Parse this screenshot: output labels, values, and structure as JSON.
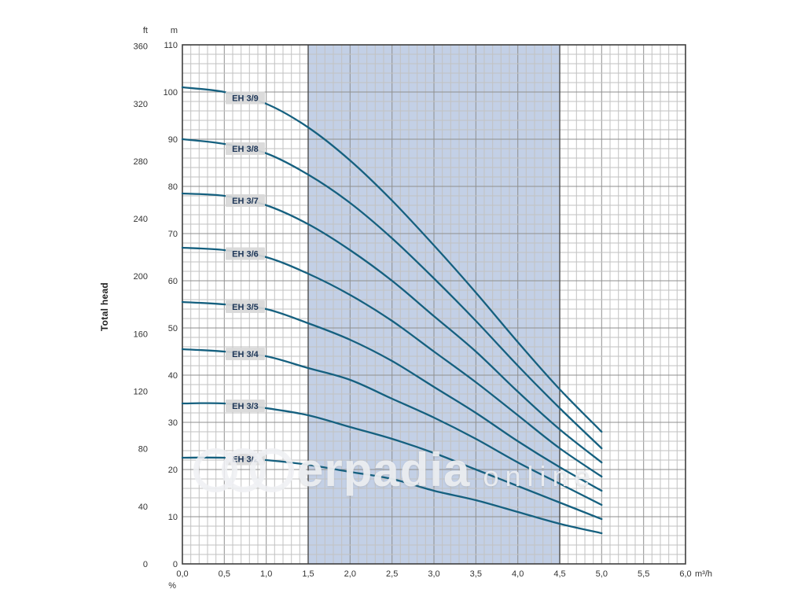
{
  "axes": {
    "ft_label": "ft",
    "m_label": "m",
    "x_unit": "m³/h",
    "percent_label": "%"
  },
  "watermark": {
    "text": "erpadia",
    "suffix": "online"
  },
  "chart_data": {
    "type": "line",
    "xlabel": "m³/h",
    "ylabel": "Total head",
    "y_axis_units": [
      "ft",
      "m"
    ],
    "xlim": [
      0,
      6
    ],
    "ylim_m": [
      0,
      110
    ],
    "ylim_ft": [
      0,
      360
    ],
    "x_tick_labels": [
      "0,0",
      "0,5",
      "1,0",
      "1,5",
      "2,0",
      "2,5",
      "3,0",
      "3,5",
      "4,0",
      "4,5",
      "5,0",
      "5,5",
      "6,0"
    ],
    "x_tick_values": [
      0,
      0.5,
      1,
      1.5,
      2,
      2.5,
      3,
      3.5,
      4,
      4.5,
      5,
      5.5,
      6
    ],
    "m_ticks": [
      0,
      10,
      20,
      30,
      40,
      50,
      60,
      70,
      80,
      90,
      100,
      110
    ],
    "ft_ticks": [
      0,
      40,
      80,
      120,
      160,
      200,
      240,
      280,
      320,
      360
    ],
    "grid": {
      "x_minor_step": 0.1,
      "x_major_step": 0.5,
      "y_minor_step_m": 2,
      "y_major_step_m": 10
    },
    "band": {
      "from": 1.5,
      "to": 4.5,
      "color": "#bdcbe3"
    },
    "curve_color": "#15607f",
    "label_q": 0.75,
    "legend_position": "on-curve-left",
    "q": [
      0,
      0.5,
      1,
      1.5,
      2,
      2.5,
      3,
      3.5,
      4,
      4.5,
      5
    ],
    "series": [
      {
        "name": "EH 3/9",
        "values": [
          101,
          100,
          97.5,
          92.5,
          85.5,
          77,
          67.5,
          57.5,
          47,
          37,
          28
        ]
      },
      {
        "name": "EH 3/8",
        "values": [
          90,
          89,
          87,
          82.5,
          76.5,
          69,
          60.5,
          51.5,
          42,
          33,
          24.5
        ]
      },
      {
        "name": "EH 3/7",
        "values": [
          78.5,
          78,
          76,
          72,
          66.5,
          60,
          52.5,
          45,
          36.5,
          28.5,
          21.5
        ]
      },
      {
        "name": "EH 3/6",
        "values": [
          67,
          66.5,
          65,
          61.5,
          57,
          51.5,
          45,
          38.5,
          31.5,
          24.5,
          18.5
        ]
      },
      {
        "name": "EH 3/5",
        "values": [
          55.5,
          55,
          54,
          51,
          47.5,
          43,
          37.5,
          32,
          26,
          20.5,
          15.5
        ]
      },
      {
        "name": "EH 3/4",
        "values": [
          45.5,
          45,
          44,
          41.5,
          39,
          35,
          31,
          26.5,
          21.5,
          17,
          12.5
        ]
      },
      {
        "name": "EH 3/3",
        "values": [
          34,
          34,
          33,
          31.5,
          29,
          26.5,
          23.5,
          20,
          16.5,
          13,
          9.5
        ]
      },
      {
        "name": "EH 3/2",
        "values": [
          22.5,
          22.5,
          22,
          21,
          19.5,
          18,
          15.5,
          13.5,
          11,
          8.5,
          6.5
        ]
      }
    ]
  }
}
